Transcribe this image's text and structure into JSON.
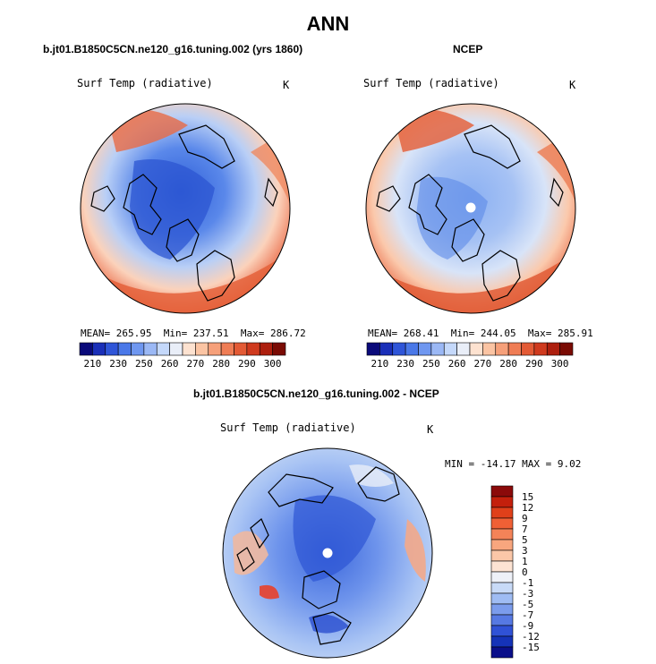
{
  "header": {
    "title": "ANN"
  },
  "chart_data": [
    {
      "type": "heatmap",
      "projection": "north-polar-stereographic",
      "title": "b.jt01.B1850C5CN.ne120_g16.tuning.002 (yrs 1860)",
      "variable": "Surf Temp (radiative)",
      "units": "K",
      "stats": {
        "mean_label": "MEAN=",
        "mean": "265.95",
        "min_label": "Min=",
        "min": "237.51",
        "max_label": "Max=",
        "max": "286.72"
      },
      "colorbar_ticks": [
        "210",
        "230",
        "250",
        "260",
        "270",
        "280",
        "290",
        "300"
      ],
      "colorbar_colors": [
        "#0a0a7a",
        "#1a2fb8",
        "#2f55d8",
        "#4a78e8",
        "#6f97f0",
        "#9bb8f5",
        "#c4d8fa",
        "#e9eef8",
        "#fde2d0",
        "#fbc4a3",
        "#f6a07a",
        "#ef7d55",
        "#e35a35",
        "#cf3a1e",
        "#ad1f0e",
        "#7a0b04"
      ]
    },
    {
      "type": "heatmap",
      "projection": "north-polar-stereographic",
      "title": "NCEP",
      "variable": "Surf Temp (radiative)",
      "units": "K",
      "stats": {
        "mean_label": "MEAN=",
        "mean": "268.41",
        "min_label": "Min=",
        "min": "244.05",
        "max_label": "Max=",
        "max": "285.91"
      },
      "colorbar_ticks": [
        "210",
        "230",
        "250",
        "260",
        "270",
        "280",
        "290",
        "300"
      ],
      "colorbar_colors": [
        "#0a0a7a",
        "#1a2fb8",
        "#2f55d8",
        "#4a78e8",
        "#6f97f0",
        "#9bb8f5",
        "#c4d8fa",
        "#e9eef8",
        "#fde2d0",
        "#fbc4a3",
        "#f6a07a",
        "#ef7d55",
        "#e35a35",
        "#cf3a1e",
        "#ad1f0e",
        "#7a0b04"
      ]
    },
    {
      "type": "heatmap",
      "projection": "north-polar-stereographic",
      "title": "b.jt01.B1850C5CN.ne120_g16.tuning.002 - NCEP",
      "variable": "Surf Temp (radiative)",
      "units": "K",
      "stats": {
        "min_label": "MIN =",
        "min": "-14.17",
        "max_label": "MAX =",
        "max": "9.02"
      },
      "colorbar_ticks": [
        "15",
        "12",
        "9",
        "7",
        "5",
        "3",
        "1",
        "0",
        "-1",
        "-3",
        "-5",
        "-7",
        "-9",
        "-12",
        "-15"
      ],
      "colorbar_colors": [
        "#8b0a0a",
        "#c4200c",
        "#e0401a",
        "#f06035",
        "#f48358",
        "#f8a67e",
        "#fbc7a8",
        "#fde3d3",
        "#eef1f8",
        "#c8daf7",
        "#9fbcf3",
        "#7b9cec",
        "#5679e3",
        "#3052d6",
        "#1533b8",
        "#0a0f8a"
      ]
    }
  ]
}
